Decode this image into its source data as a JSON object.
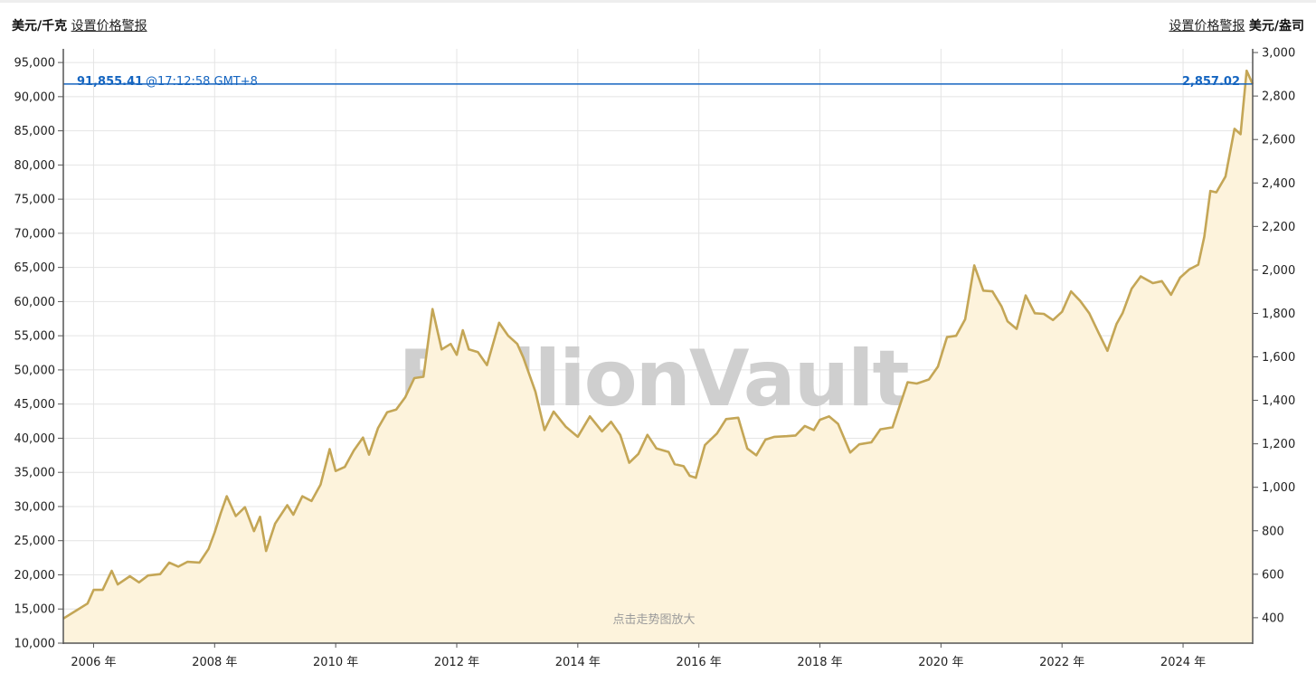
{
  "header": {
    "left_unit": "美元/千克",
    "left_link": "设置价格警报",
    "right_link": "设置价格警报",
    "right_unit": "美元/盎司"
  },
  "watermark": "BullionVault",
  "zoom_hint": "点击走势图放大",
  "current_price": {
    "kg_value": "91,855.41",
    "timestamp": "@17:12:58 GMT+8",
    "oz_value": "2,857.02",
    "color": "#1565c0"
  },
  "colors": {
    "line": "#c4a656",
    "fill": "#fdf3dc",
    "grid": "#e4e4e4",
    "axis": "#555555"
  },
  "chart_data": {
    "type": "area",
    "title": "",
    "xlabel": "",
    "ylabel_left": "美元/千克",
    "ylabel_right": "美元/盎司",
    "grid": true,
    "xlim": [
      2005.5,
      2025.15
    ],
    "ylim_left": [
      10000,
      97000
    ],
    "ylim_right": [
      283,
      3017
    ],
    "x_ticks": [
      {
        "value": 2006,
        "label": "2006 年"
      },
      {
        "value": 2008,
        "label": "2008 年"
      },
      {
        "value": 2010,
        "label": "2010 年"
      },
      {
        "value": 2012,
        "label": "2012 年"
      },
      {
        "value": 2014,
        "label": "2014 年"
      },
      {
        "value": 2016,
        "label": "2016 年"
      },
      {
        "value": 2018,
        "label": "2018 年"
      },
      {
        "value": 2020,
        "label": "2020 年"
      },
      {
        "value": 2022,
        "label": "2022 年"
      },
      {
        "value": 2024,
        "label": "2024 年"
      }
    ],
    "y_left_ticks": [
      {
        "value": 10000,
        "label": "10,000"
      },
      {
        "value": 15000,
        "label": "15,000"
      },
      {
        "value": 20000,
        "label": "20,000"
      },
      {
        "value": 25000,
        "label": "25,000"
      },
      {
        "value": 30000,
        "label": "30,000"
      },
      {
        "value": 35000,
        "label": "35,000"
      },
      {
        "value": 40000,
        "label": "40,000"
      },
      {
        "value": 45000,
        "label": "45,000"
      },
      {
        "value": 50000,
        "label": "50,000"
      },
      {
        "value": 55000,
        "label": "55,000"
      },
      {
        "value": 60000,
        "label": "60,000"
      },
      {
        "value": 65000,
        "label": "65,000"
      },
      {
        "value": 70000,
        "label": "70,000"
      },
      {
        "value": 75000,
        "label": "75,000"
      },
      {
        "value": 80000,
        "label": "80,000"
      },
      {
        "value": 85000,
        "label": "85,000"
      },
      {
        "value": 90000,
        "label": "90,000"
      },
      {
        "value": 95000,
        "label": "95,000"
      }
    ],
    "y_right_ticks": [
      {
        "value": 400,
        "label": "400"
      },
      {
        "value": 600,
        "label": "600"
      },
      {
        "value": 800,
        "label": "800"
      },
      {
        "value": 1000,
        "label": "1,000"
      },
      {
        "value": 1200,
        "label": "1,200"
      },
      {
        "value": 1400,
        "label": "1,400"
      },
      {
        "value": 1600,
        "label": "1,600"
      },
      {
        "value": 1800,
        "label": "1,800"
      },
      {
        "value": 2000,
        "label": "2,000"
      },
      {
        "value": 2200,
        "label": "2,200"
      },
      {
        "value": 2400,
        "label": "2,400"
      },
      {
        "value": 2600,
        "label": "2,600"
      },
      {
        "value": 2800,
        "label": "2,800"
      },
      {
        "value": 3000,
        "label": "3,000"
      }
    ],
    "current_value": 91855.41,
    "series": [
      {
        "values": [
          [
            2005.5,
            13600
          ],
          [
            2005.7,
            14700
          ],
          [
            2005.9,
            15800
          ],
          [
            2006.0,
            17800
          ],
          [
            2006.15,
            17800
          ],
          [
            2006.3,
            20600
          ],
          [
            2006.4,
            18600
          ],
          [
            2006.6,
            19800
          ],
          [
            2006.75,
            18900
          ],
          [
            2006.9,
            19900
          ],
          [
            2007.1,
            20100
          ],
          [
            2007.25,
            21800
          ],
          [
            2007.4,
            21200
          ],
          [
            2007.55,
            21900
          ],
          [
            2007.75,
            21800
          ],
          [
            2007.9,
            23800
          ],
          [
            2008.0,
            26200
          ],
          [
            2008.1,
            29000
          ],
          [
            2008.2,
            31500
          ],
          [
            2008.35,
            28600
          ],
          [
            2008.5,
            29900
          ],
          [
            2008.65,
            26400
          ],
          [
            2008.75,
            28500
          ],
          [
            2008.85,
            23500
          ],
          [
            2009.0,
            27500
          ],
          [
            2009.2,
            30200
          ],
          [
            2009.3,
            28800
          ],
          [
            2009.45,
            31500
          ],
          [
            2009.6,
            30800
          ],
          [
            2009.75,
            33200
          ],
          [
            2009.9,
            38400
          ],
          [
            2010.0,
            35200
          ],
          [
            2010.15,
            35800
          ],
          [
            2010.3,
            38200
          ],
          [
            2010.45,
            40100
          ],
          [
            2010.55,
            37600
          ],
          [
            2010.7,
            41500
          ],
          [
            2010.85,
            43800
          ],
          [
            2011.0,
            44200
          ],
          [
            2011.15,
            46000
          ],
          [
            2011.3,
            48800
          ],
          [
            2011.45,
            49000
          ],
          [
            2011.6,
            58900
          ],
          [
            2011.75,
            53000
          ],
          [
            2011.9,
            53800
          ],
          [
            2012.0,
            52200
          ],
          [
            2012.1,
            55800
          ],
          [
            2012.2,
            53000
          ],
          [
            2012.35,
            52600
          ],
          [
            2012.5,
            50700
          ],
          [
            2012.7,
            56900
          ],
          [
            2012.85,
            55000
          ],
          [
            2013.0,
            53800
          ],
          [
            2013.1,
            51800
          ],
          [
            2013.3,
            46800
          ],
          [
            2013.45,
            41200
          ],
          [
            2013.6,
            43900
          ],
          [
            2013.8,
            41700
          ],
          [
            2014.0,
            40200
          ],
          [
            2014.2,
            43200
          ],
          [
            2014.4,
            41000
          ],
          [
            2014.55,
            42400
          ],
          [
            2014.7,
            40500
          ],
          [
            2014.85,
            36400
          ],
          [
            2015.0,
            37700
          ],
          [
            2015.15,
            40500
          ],
          [
            2015.3,
            38500
          ],
          [
            2015.5,
            38000
          ],
          [
            2015.6,
            36200
          ],
          [
            2015.75,
            35900
          ],
          [
            2015.85,
            34500
          ],
          [
            2015.95,
            34200
          ],
          [
            2016.1,
            39000
          ],
          [
            2016.3,
            40700
          ],
          [
            2016.45,
            42800
          ],
          [
            2016.65,
            43000
          ],
          [
            2016.8,
            38500
          ],
          [
            2016.95,
            37500
          ],
          [
            2017.1,
            39800
          ],
          [
            2017.25,
            40200
          ],
          [
            2017.45,
            40300
          ],
          [
            2017.6,
            40400
          ],
          [
            2017.75,
            41800
          ],
          [
            2017.9,
            41200
          ],
          [
            2018.0,
            42700
          ],
          [
            2018.15,
            43200
          ],
          [
            2018.3,
            42100
          ],
          [
            2018.5,
            37900
          ],
          [
            2018.65,
            39100
          ],
          [
            2018.85,
            39400
          ],
          [
            2019.0,
            41300
          ],
          [
            2019.2,
            41600
          ],
          [
            2019.45,
            48200
          ],
          [
            2019.6,
            48000
          ],
          [
            2019.8,
            48600
          ],
          [
            2019.95,
            50500
          ],
          [
            2020.1,
            54800
          ],
          [
            2020.25,
            55000
          ],
          [
            2020.4,
            57400
          ],
          [
            2020.55,
            65300
          ],
          [
            2020.7,
            61600
          ],
          [
            2020.85,
            61500
          ],
          [
            2021.0,
            59300
          ],
          [
            2021.1,
            57100
          ],
          [
            2021.25,
            56000
          ],
          [
            2021.4,
            60900
          ],
          [
            2021.55,
            58300
          ],
          [
            2021.7,
            58200
          ],
          [
            2021.85,
            57300
          ],
          [
            2022.0,
            58500
          ],
          [
            2022.15,
            61500
          ],
          [
            2022.3,
            60100
          ],
          [
            2022.45,
            58300
          ],
          [
            2022.6,
            55500
          ],
          [
            2022.75,
            52800
          ],
          [
            2022.9,
            56700
          ],
          [
            2023.0,
            58300
          ],
          [
            2023.15,
            61900
          ],
          [
            2023.3,
            63700
          ],
          [
            2023.5,
            62700
          ],
          [
            2023.65,
            63000
          ],
          [
            2023.8,
            61000
          ],
          [
            2023.95,
            63500
          ],
          [
            2024.1,
            64700
          ],
          [
            2024.25,
            65400
          ],
          [
            2024.35,
            69500
          ],
          [
            2024.45,
            76200
          ],
          [
            2024.55,
            76000
          ],
          [
            2024.7,
            78300
          ],
          [
            2024.85,
            85300
          ],
          [
            2024.95,
            84500
          ],
          [
            2025.05,
            93800
          ],
          [
            2025.15,
            91855
          ]
        ]
      }
    ]
  }
}
